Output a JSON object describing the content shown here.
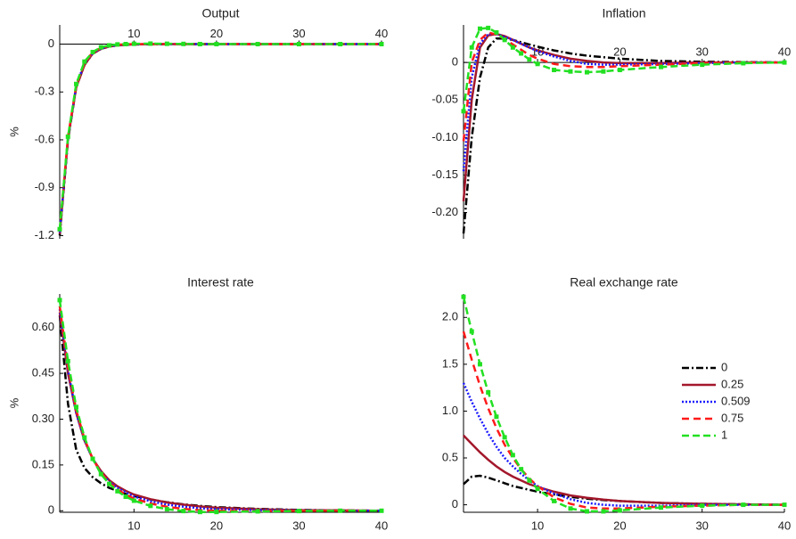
{
  "chart_data": [
    {
      "type": "line",
      "title": "Output",
      "ylabel": "%",
      "x": [
        1,
        2,
        3,
        4,
        5,
        6,
        7,
        8,
        9,
        10,
        12,
        14,
        16,
        18,
        20,
        25,
        30,
        35,
        40
      ],
      "xlim": [
        1,
        40
      ],
      "xticks": [
        10,
        20,
        30,
        40
      ],
      "ylim": [
        -1.22,
        0.12
      ],
      "yticks": [
        0,
        -0.3,
        -0.6,
        -0.9,
        -1.2
      ],
      "series": [
        {
          "color": "#000000",
          "values": [
            -1.2,
            -0.6,
            -0.27,
            -0.13,
            -0.06,
            -0.03,
            -0.015,
            -0.008,
            -0.004,
            -0.002,
            -0.001,
            0,
            0,
            0,
            0,
            0,
            0,
            0,
            0
          ]
        },
        {
          "color": "#a3172b",
          "values": [
            -1.19,
            -0.59,
            -0.27,
            -0.13,
            -0.06,
            -0.03,
            -0.015,
            -0.008,
            -0.004,
            -0.002,
            0,
            0,
            0,
            0,
            0,
            0,
            0,
            0,
            0
          ]
        },
        {
          "color": "#1a1aff",
          "values": [
            -1.18,
            -0.59,
            -0.26,
            -0.12,
            -0.055,
            -0.028,
            -0.013,
            -0.006,
            -0.003,
            -0.001,
            0,
            0,
            0,
            0,
            0,
            0,
            0,
            0,
            0
          ]
        },
        {
          "color": "#ff1a1a",
          "values": [
            -1.17,
            -0.58,
            -0.26,
            -0.12,
            -0.05,
            -0.025,
            -0.01,
            -0.004,
            -0.001,
            0,
            0,
            0,
            0,
            0,
            0,
            0,
            0,
            0,
            0
          ]
        },
        {
          "color": "#22e022",
          "values": [
            -1.16,
            -0.58,
            -0.25,
            -0.11,
            -0.05,
            -0.02,
            -0.008,
            -0.002,
            0,
            0.002,
            0.003,
            0.002,
            0.001,
            0,
            0,
            0,
            0,
            0,
            0
          ]
        }
      ]
    },
    {
      "type": "line",
      "title": "Inflation",
      "x": [
        1,
        2,
        3,
        4,
        5,
        6,
        7,
        8,
        9,
        10,
        12,
        14,
        16,
        18,
        20,
        25,
        30,
        35,
        40
      ],
      "xlim": [
        1,
        40
      ],
      "xticks": [
        10,
        20,
        30,
        40
      ],
      "ylim": [
        -0.235,
        0.05
      ],
      "yticks": [
        0,
        -0.05,
        {
          "value": -0.1,
          "label": "-0.10"
        },
        -0.15,
        {
          "value": -0.2,
          "label": "-0.20"
        }
      ],
      "series": [
        {
          "color": "#000000",
          "values": [
            -0.228,
            -0.1,
            -0.02,
            0.02,
            0.032,
            0.032,
            0.03,
            0.027,
            0.024,
            0.021,
            0.016,
            0.012,
            0.009,
            0.007,
            0.005,
            0.002,
            0.001,
            0.0005,
            0
          ]
        },
        {
          "color": "#a3172b",
          "values": [
            -0.185,
            -0.05,
            0.02,
            0.036,
            0.038,
            0.035,
            0.03,
            0.025,
            0.02,
            0.016,
            0.01,
            0.005,
            0.002,
            0,
            -0.001,
            -0.001,
            0,
            0,
            0
          ]
        },
        {
          "color": "#1a1aff",
          "values": [
            -0.145,
            -0.02,
            0.025,
            0.038,
            0.038,
            0.034,
            0.03,
            0.025,
            0.02,
            0.015,
            0.008,
            0.002,
            -0.002,
            -0.003,
            -0.003,
            -0.002,
            -0.001,
            0,
            0
          ]
        },
        {
          "color": "#ff1a1a",
          "values": [
            -0.105,
            0,
            0.03,
            0.04,
            0.037,
            0.031,
            0.024,
            0.017,
            0.01,
            0.005,
            -0.002,
            -0.005,
            -0.006,
            -0.006,
            -0.005,
            -0.003,
            -0.001,
            0,
            0
          ]
        },
        {
          "color": "#22e022",
          "values": [
            -0.065,
            0.02,
            0.045,
            0.046,
            0.04,
            0.03,
            0.02,
            0.012,
            0.004,
            -0.002,
            -0.01,
            -0.012,
            -0.013,
            -0.012,
            -0.01,
            -0.006,
            -0.003,
            -0.001,
            0
          ]
        }
      ]
    },
    {
      "type": "line",
      "title": "Interest rate",
      "ylabel": "%",
      "x": [
        1,
        2,
        3,
        4,
        5,
        6,
        7,
        8,
        9,
        10,
        12,
        14,
        16,
        18,
        20,
        25,
        30,
        35,
        40
      ],
      "xlim": [
        1,
        40
      ],
      "xticks": [
        10,
        20,
        30,
        40
      ],
      "ylim": [
        -0.005,
        0.71
      ],
      "yticks": [
        0,
        0.15,
        {
          "value": 0.3,
          "label": "0.30"
        },
        0.45,
        {
          "value": 0.6,
          "label": "0.60"
        }
      ],
      "series": [
        {
          "color": "#000000",
          "values": [
            0.64,
            0.35,
            0.2,
            0.14,
            0.11,
            0.09,
            0.075,
            0.065,
            0.055,
            0.048,
            0.037,
            0.028,
            0.021,
            0.016,
            0.012,
            0.006,
            0.003,
            0.001,
            0
          ]
        },
        {
          "color": "#a3172b",
          "values": [
            0.65,
            0.45,
            0.32,
            0.23,
            0.17,
            0.13,
            0.1,
            0.08,
            0.065,
            0.053,
            0.038,
            0.027,
            0.02,
            0.014,
            0.01,
            0.005,
            0.002,
            0.001,
            0
          ]
        },
        {
          "color": "#1a1aff",
          "values": [
            0.66,
            0.46,
            0.32,
            0.23,
            0.17,
            0.125,
            0.095,
            0.075,
            0.06,
            0.047,
            0.031,
            0.02,
            0.013,
            0.008,
            0.005,
            0.002,
            0.001,
            0,
            0
          ]
        },
        {
          "color": "#ff1a1a",
          "values": [
            0.67,
            0.47,
            0.33,
            0.235,
            0.17,
            0.125,
            0.092,
            0.07,
            0.053,
            0.04,
            0.024,
            0.013,
            0.006,
            0.002,
            0,
            -0.001,
            0,
            0,
            0
          ]
        },
        {
          "color": "#22e022",
          "values": [
            0.69,
            0.49,
            0.34,
            0.24,
            0.17,
            0.12,
            0.088,
            0.064,
            0.046,
            0.033,
            0.016,
            0.005,
            -0.001,
            -0.004,
            -0.004,
            -0.002,
            -0.001,
            0,
            0
          ]
        }
      ]
    },
    {
      "type": "line",
      "title": "Real exchange rate",
      "legend": "right",
      "x": [
        1,
        2,
        3,
        4,
        5,
        6,
        7,
        8,
        9,
        10,
        12,
        14,
        16,
        18,
        20,
        25,
        30,
        35,
        40
      ],
      "xlim": [
        1,
        40
      ],
      "xticks": [
        10,
        20,
        30,
        40
      ],
      "ylim": [
        -0.08,
        2.25
      ],
      "yticks": [
        0,
        0.5,
        {
          "value": 1,
          "label": "1.0"
        },
        1.5,
        {
          "value": 2,
          "label": "2.0"
        }
      ],
      "series": [
        {
          "name": "0",
          "color": "#000000",
          "values": [
            0.22,
            0.3,
            0.31,
            0.29,
            0.26,
            0.23,
            0.2,
            0.18,
            0.16,
            0.14,
            0.11,
            0.085,
            0.065,
            0.05,
            0.04,
            0.02,
            0.01,
            0.005,
            0
          ]
        },
        {
          "name": "0.25",
          "color": "#a3172b",
          "values": [
            0.74,
            0.65,
            0.56,
            0.48,
            0.41,
            0.35,
            0.3,
            0.26,
            0.22,
            0.19,
            0.14,
            0.1,
            0.075,
            0.055,
            0.04,
            0.02,
            0.01,
            0.005,
            0
          ]
        },
        {
          "name": "0.509",
          "color": "#1a1aff",
          "values": [
            1.3,
            1.1,
            0.92,
            0.76,
            0.62,
            0.5,
            0.41,
            0.33,
            0.26,
            0.2,
            0.12,
            0.06,
            0.02,
            0,
            -0.01,
            -0.01,
            0,
            0,
            0
          ]
        },
        {
          "name": "0.75",
          "color": "#ff1a1a",
          "values": [
            1.85,
            1.55,
            1.27,
            1.03,
            0.82,
            0.64,
            0.5,
            0.38,
            0.28,
            0.2,
            0.08,
            0.01,
            -0.03,
            -0.04,
            -0.04,
            -0.02,
            -0.01,
            0,
            0
          ]
        },
        {
          "name": "1",
          "color": "#22e022",
          "values": [
            2.22,
            1.85,
            1.5,
            1.2,
            0.94,
            0.72,
            0.53,
            0.38,
            0.26,
            0.17,
            0.04,
            -0.04,
            -0.07,
            -0.07,
            -0.06,
            -0.03,
            -0.01,
            0,
            0
          ]
        }
      ]
    }
  ]
}
